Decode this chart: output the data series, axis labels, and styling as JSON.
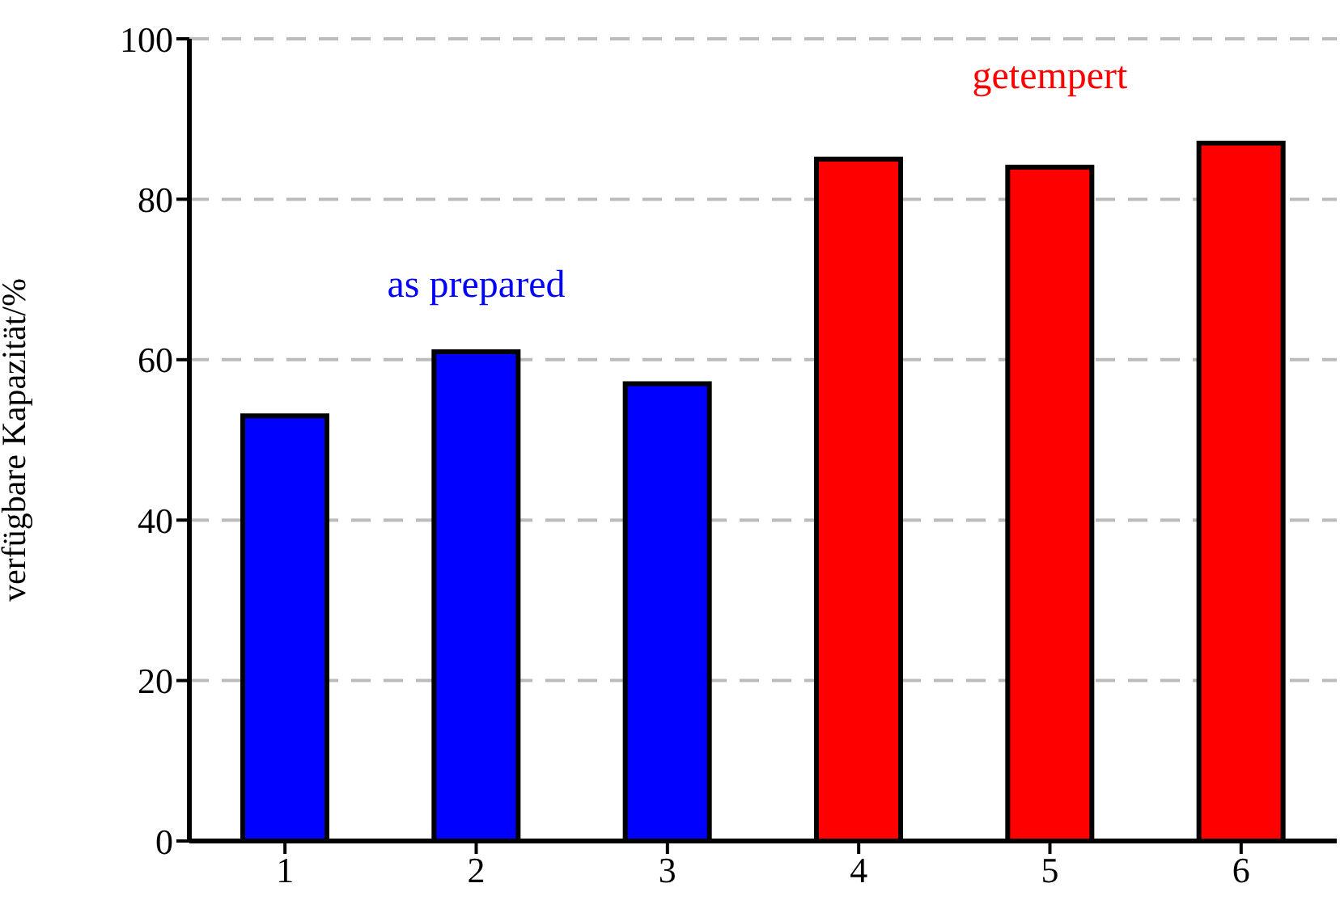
{
  "chart_data": {
    "type": "bar",
    "ylabel": "verfügbare Kapazität/%",
    "categories": [
      "1",
      "2",
      "3",
      "4",
      "5",
      "6"
    ],
    "values": [
      53,
      61,
      57,
      85,
      84,
      87
    ],
    "colors": [
      "#0000ff",
      "#0000ff",
      "#0000ff",
      "#ff0000",
      "#ff0000",
      "#ff0000"
    ],
    "ylim": [
      0,
      100
    ],
    "yticks": [
      0,
      20,
      40,
      60,
      80,
      100
    ],
    "grid": "y",
    "annotations": [
      "as prepared",
      "getempert"
    ]
  }
}
